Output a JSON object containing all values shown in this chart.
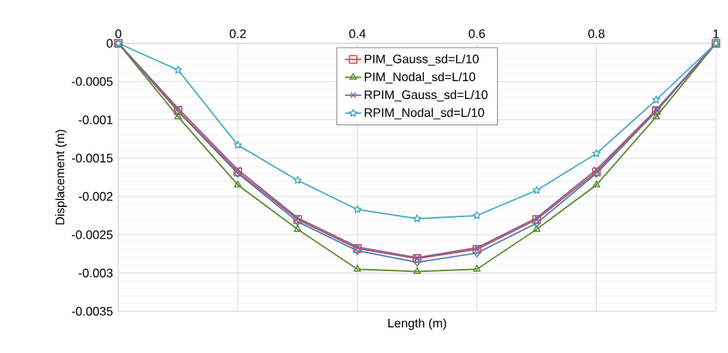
{
  "chart_data": {
    "type": "line",
    "xlabel": "Length (m)",
    "ylabel": "Displacement (m)",
    "x": [
      0,
      0.1,
      0.2,
      0.3,
      0.4,
      0.5,
      0.6,
      0.7,
      0.8,
      0.9,
      1
    ],
    "xlim": [
      0,
      1
    ],
    "xticks": [
      0,
      0.2,
      0.4,
      0.6,
      0.8,
      1
    ],
    "ylim": [
      -0.0035,
      0
    ],
    "yticks": [
      -0.0035,
      -0.003,
      -0.0025,
      -0.002,
      -0.0015,
      -0.001,
      -0.0005,
      0
    ],
    "grid": true,
    "legend": "top",
    "series": [
      {
        "color": "#4f81bd",
        "marker": "diamond",
        "values": [
          0,
          -0.00089,
          -0.0017,
          -0.00233,
          -0.00271,
          -0.00286,
          -0.00274,
          -0.00235,
          -0.0017,
          -0.00089,
          0
        ]
      },
      {
        "name": "PIM_Gauss_sd=L/10",
        "color": "#c0504d",
        "marker": "square",
        "values": [
          0,
          -0.00088,
          -0.00168,
          -0.0023,
          -0.00268,
          -0.00281,
          -0.00269,
          -0.0023,
          -0.00168,
          -0.00088,
          0
        ]
      },
      {
        "name": "PIM_Nodal_sd=L/10",
        "color": "#5b8c32",
        "marker": "triangle",
        "values": [
          0,
          -0.00096,
          -0.00185,
          -0.00243,
          -0.00295,
          -0.00298,
          -0.00295,
          -0.00243,
          -0.00185,
          -0.00096,
          0
        ]
      },
      {
        "name": "RPIM_Gauss_sd=L/10",
        "color": "#8064a2",
        "marker": "cross",
        "values": [
          0,
          -0.00085,
          -0.00165,
          -0.00228,
          -0.00266,
          -0.0028,
          -0.00267,
          -0.00228,
          -0.00165,
          -0.00087,
          0
        ]
      },
      {
        "name": "RPIM_Nodal_sd=L/10",
        "color": "#4bacc6",
        "marker": "star",
        "values": [
          0,
          -0.00035,
          -0.00133,
          -0.00179,
          -0.00217,
          -0.00229,
          -0.00225,
          -0.00192,
          -0.00144,
          -0.00074,
          0
        ]
      }
    ]
  }
}
